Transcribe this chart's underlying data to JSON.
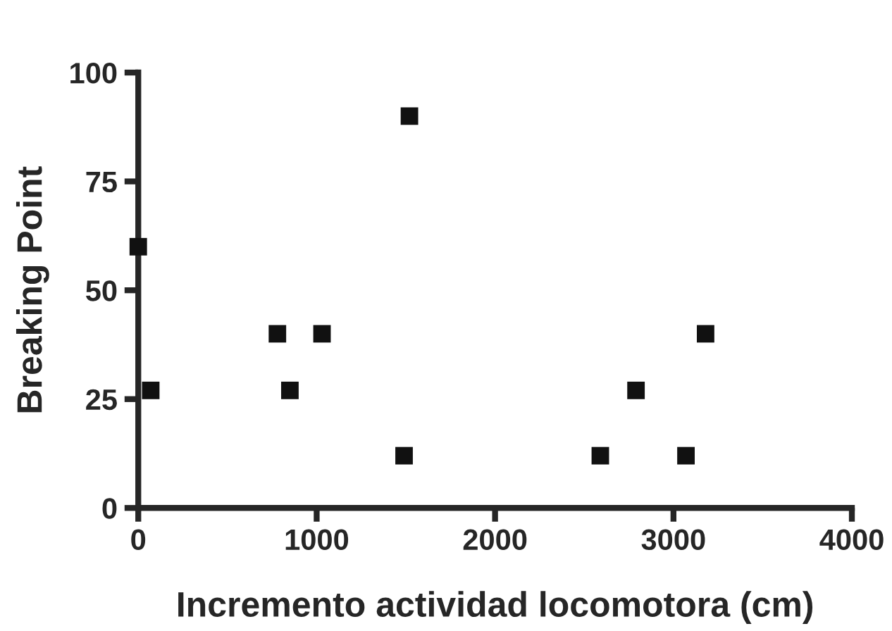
{
  "chart_data": {
    "type": "scatter",
    "xlabel": "Incremento actividad locomotora (cm)",
    "ylabel": "Breaking Point",
    "x": [
      0,
      70,
      780,
      1030,
      850,
      1490,
      1520,
      2590,
      2790,
      3070,
      3180
    ],
    "values": [
      60,
      27,
      40,
      40,
      27,
      12,
      90,
      12,
      27,
      12,
      40
    ],
    "color": "#111111",
    "marker": "square",
    "xlim": [
      0,
      4000
    ],
    "xticks": [
      0,
      1000,
      2000,
      3000,
      4000
    ],
    "ylim": [
      0,
      100
    ],
    "yticks": [
      0,
      25,
      50,
      75,
      100
    ],
    "grid": false,
    "legend": false
  }
}
